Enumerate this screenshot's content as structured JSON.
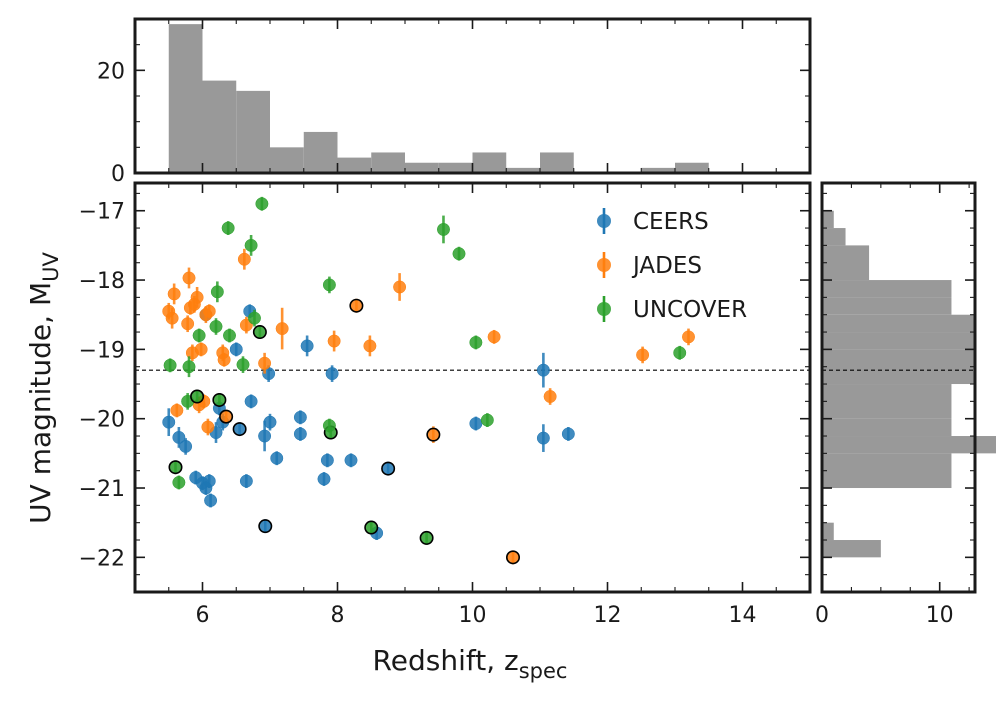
{
  "colors": {
    "CEERS": "#1f77b4",
    "JADES": "#ff7f0e",
    "UNCOVER": "#2ca02c",
    "hist": "#999999",
    "highlight_edge": "#000000"
  },
  "chart_data": [
    {
      "type": "scatter",
      "panel": "main",
      "xlabel": "Redshift, z",
      "xlabel_sub": "spec",
      "ylabel": "UV magnitude, M",
      "ylabel_sub": "UV",
      "xlim": [
        5,
        15
      ],
      "ylim": [
        -16.6,
        -22.5
      ],
      "y_inverted": true,
      "xticks": [
        6,
        8,
        10,
        12,
        14
      ],
      "yticks": [
        -17,
        -18,
        -19,
        -20,
        -21,
        -22
      ],
      "legend_position": "top-right",
      "reference_line": {
        "y": -19.3,
        "style": "dashed"
      },
      "series": [
        {
          "name": "CEERS",
          "points": [
            {
              "x": 5.5,
              "y": -20.05,
              "e": 0.2
            },
            {
              "x": 5.65,
              "y": -20.27,
              "e": 0.15
            },
            {
              "x": 5.75,
              "y": -20.4,
              "e": 0.12
            },
            {
              "x": 5.9,
              "y": -20.85,
              "e": 0.1
            },
            {
              "x": 6.0,
              "y": -20.93,
              "e": 0.1
            },
            {
              "x": 6.05,
              "y": -21.0,
              "e": 0.1
            },
            {
              "x": 6.1,
              "y": -20.9,
              "e": 0.1
            },
            {
              "x": 6.12,
              "y": -21.18,
              "e": 0.1
            },
            {
              "x": 6.05,
              "y": -18.5,
              "e": 0.1
            },
            {
              "x": 6.2,
              "y": -20.2,
              "e": 0.15
            },
            {
              "x": 6.25,
              "y": -19.85,
              "e": 0.1
            },
            {
              "x": 6.3,
              "y": -20.05,
              "e": 0.12
            },
            {
              "x": 6.5,
              "y": -19.0,
              "e": 0.1
            },
            {
              "x": 6.55,
              "y": -20.15,
              "e": 0.1,
              "highlight": true
            },
            {
              "x": 6.65,
              "y": -20.9,
              "e": 0.1
            },
            {
              "x": 6.7,
              "y": -18.45,
              "e": 0.1
            },
            {
              "x": 6.72,
              "y": -19.75,
              "e": 0.1
            },
            {
              "x": 6.92,
              "y": -20.25,
              "e": 0.22
            },
            {
              "x": 6.93,
              "y": -21.55,
              "e": 0.1,
              "highlight": true
            },
            {
              "x": 7.0,
              "y": -20.05,
              "e": 0.12
            },
            {
              "x": 7.1,
              "y": -20.57,
              "e": 0.1
            },
            {
              "x": 7.45,
              "y": -19.98,
              "e": 0.1
            },
            {
              "x": 7.45,
              "y": -20.22,
              "e": 0.1
            },
            {
              "x": 7.55,
              "y": -18.95,
              "e": 0.15
            },
            {
              "x": 7.8,
              "y": -20.87,
              "e": 0.1
            },
            {
              "x": 7.85,
              "y": -20.6,
              "e": 0.1
            },
            {
              "x": 7.92,
              "y": -19.35,
              "e": 0.12
            },
            {
              "x": 8.2,
              "y": -20.6,
              "e": 0.1
            },
            {
              "x": 8.58,
              "y": -21.65,
              "e": 0.1
            },
            {
              "x": 8.75,
              "y": -20.72,
              "e": 0.1,
              "highlight": true
            },
            {
              "x": 10.05,
              "y": -20.07,
              "e": 0.1
            },
            {
              "x": 11.05,
              "y": -19.3,
              "e": 0.25
            },
            {
              "x": 11.05,
              "y": -20.28,
              "e": 0.2
            },
            {
              "x": 11.42,
              "y": -20.22,
              "e": 0.1
            },
            {
              "x": 6.98,
              "y": -19.35,
              "e": 0.12
            }
          ]
        },
        {
          "name": "JADES",
          "points": [
            {
              "x": 5.5,
              "y": -18.45,
              "e": 0.12
            },
            {
              "x": 5.55,
              "y": -18.55,
              "e": 0.15
            },
            {
              "x": 5.58,
              "y": -18.2,
              "e": 0.15
            },
            {
              "x": 5.62,
              "y": -19.88,
              "e": 0.1
            },
            {
              "x": 5.8,
              "y": -17.97,
              "e": 0.15
            },
            {
              "x": 5.78,
              "y": -18.63,
              "e": 0.12
            },
            {
              "x": 5.82,
              "y": -18.4,
              "e": 0.1
            },
            {
              "x": 5.85,
              "y": -19.05,
              "e": 0.12
            },
            {
              "x": 5.88,
              "y": -18.35,
              "e": 0.12
            },
            {
              "x": 5.92,
              "y": -18.25,
              "e": 0.15
            },
            {
              "x": 5.95,
              "y": -19.8,
              "e": 0.12
            },
            {
              "x": 5.98,
              "y": -19.0,
              "e": 0.1
            },
            {
              "x": 6.02,
              "y": -19.75,
              "e": 0.1
            },
            {
              "x": 6.05,
              "y": -18.5,
              "e": 0.12
            },
            {
              "x": 6.1,
              "y": -18.45,
              "e": 0.1
            },
            {
              "x": 6.08,
              "y": -20.12,
              "e": 0.12
            },
            {
              "x": 6.3,
              "y": -19.05,
              "e": 0.12
            },
            {
              "x": 6.32,
              "y": -19.15,
              "e": 0.1
            },
            {
              "x": 6.35,
              "y": -19.97,
              "e": 0.1,
              "highlight": true
            },
            {
              "x": 6.62,
              "y": -17.7,
              "e": 0.15
            },
            {
              "x": 6.65,
              "y": -18.65,
              "e": 0.12
            },
            {
              "x": 6.92,
              "y": -19.2,
              "e": 0.15
            },
            {
              "x": 7.18,
              "y": -18.7,
              "e": 0.3
            },
            {
              "x": 7.95,
              "y": -18.88,
              "e": 0.15
            },
            {
              "x": 8.28,
              "y": -18.37,
              "e": 0.1,
              "highlight": true
            },
            {
              "x": 8.48,
              "y": -18.95,
              "e": 0.15
            },
            {
              "x": 8.92,
              "y": -18.1,
              "e": 0.2
            },
            {
              "x": 9.42,
              "y": -20.23,
              "e": 0.12,
              "highlight": true
            },
            {
              "x": 10.32,
              "y": -18.82,
              "e": 0.1
            },
            {
              "x": 10.6,
              "y": -22.0,
              "e": 0.1,
              "highlight": true
            },
            {
              "x": 11.15,
              "y": -19.68,
              "e": 0.12
            },
            {
              "x": 12.52,
              "y": -19.08,
              "e": 0.12
            },
            {
              "x": 13.2,
              "y": -18.82,
              "e": 0.12
            }
          ]
        },
        {
          "name": "UNCOVER",
          "points": [
            {
              "x": 5.52,
              "y": -19.23,
              "e": 0.1
            },
            {
              "x": 5.6,
              "y": -20.7,
              "e": 0.1,
              "highlight": true
            },
            {
              "x": 5.65,
              "y": -20.92,
              "e": 0.1
            },
            {
              "x": 5.78,
              "y": -19.75,
              "e": 0.12
            },
            {
              "x": 5.8,
              "y": -19.25,
              "e": 0.15
            },
            {
              "x": 5.92,
              "y": -19.68,
              "e": 0.1,
              "highlight": true
            },
            {
              "x": 5.95,
              "y": -18.8,
              "e": 0.1
            },
            {
              "x": 6.2,
              "y": -18.67,
              "e": 0.12
            },
            {
              "x": 6.25,
              "y": -19.73,
              "e": 0.1,
              "highlight": true
            },
            {
              "x": 6.22,
              "y": -18.17,
              "e": 0.15
            },
            {
              "x": 6.38,
              "y": -17.25,
              "e": 0.1
            },
            {
              "x": 6.4,
              "y": -18.8,
              "e": 0.1
            },
            {
              "x": 6.6,
              "y": -19.22,
              "e": 0.12
            },
            {
              "x": 6.72,
              "y": -17.5,
              "e": 0.15
            },
            {
              "x": 6.77,
              "y": -18.55,
              "e": 0.12
            },
            {
              "x": 6.85,
              "y": -18.75,
              "e": 0.1,
              "highlight": true
            },
            {
              "x": 6.88,
              "y": -16.9,
              "e": 0.1
            },
            {
              "x": 7.88,
              "y": -18.07,
              "e": 0.12
            },
            {
              "x": 7.9,
              "y": -20.2,
              "e": 0.1,
              "highlight": true
            },
            {
              "x": 7.88,
              "y": -20.1,
              "e": 0.1
            },
            {
              "x": 8.5,
              "y": -21.57,
              "e": 0.1,
              "highlight": true
            },
            {
              "x": 9.32,
              "y": -21.72,
              "e": 0.1,
              "highlight": true
            },
            {
              "x": 9.57,
              "y": -17.27,
              "e": 0.2
            },
            {
              "x": 9.8,
              "y": -17.62,
              "e": 0.1
            },
            {
              "x": 10.05,
              "y": -18.9,
              "e": 0.1
            },
            {
              "x": 10.22,
              "y": -20.02,
              "e": 0.1
            },
            {
              "x": 13.07,
              "y": -19.05,
              "e": 0.1
            }
          ]
        }
      ]
    },
    {
      "type": "bar",
      "panel": "top-histogram",
      "orientation": "vertical",
      "bin_edges": [
        5.5,
        6,
        6.5,
        7,
        7.5,
        8,
        8.5,
        9,
        9.5,
        10,
        10.5,
        11,
        11.5,
        12,
        12.5,
        13,
        13.5
      ],
      "values": [
        29,
        18,
        16,
        5,
        8,
        3,
        4,
        2,
        2,
        4,
        1,
        4,
        0,
        0,
        1,
        2
      ],
      "ylim": [
        0,
        30
      ],
      "yticks": [
        0,
        20
      ]
    },
    {
      "type": "bar",
      "panel": "right-histogram",
      "orientation": "horizontal",
      "bin_edges": [
        -17.0,
        -17.25,
        -17.5,
        -18.0,
        -18.25,
        -18.5,
        -18.75,
        -19.0,
        -19.5,
        -20.0,
        -20.25,
        -20.5,
        -21.0,
        -21.5,
        -21.75,
        -22.0
      ],
      "values": [
        1,
        2,
        4,
        11,
        11,
        13,
        13,
        13,
        11,
        11,
        16,
        11,
        0,
        1,
        5
      ],
      "xlim": [
        0,
        13
      ],
      "xticks": [
        0,
        10
      ],
      "reference_line": {
        "y": -19.3,
        "style": "dashed"
      }
    }
  ]
}
